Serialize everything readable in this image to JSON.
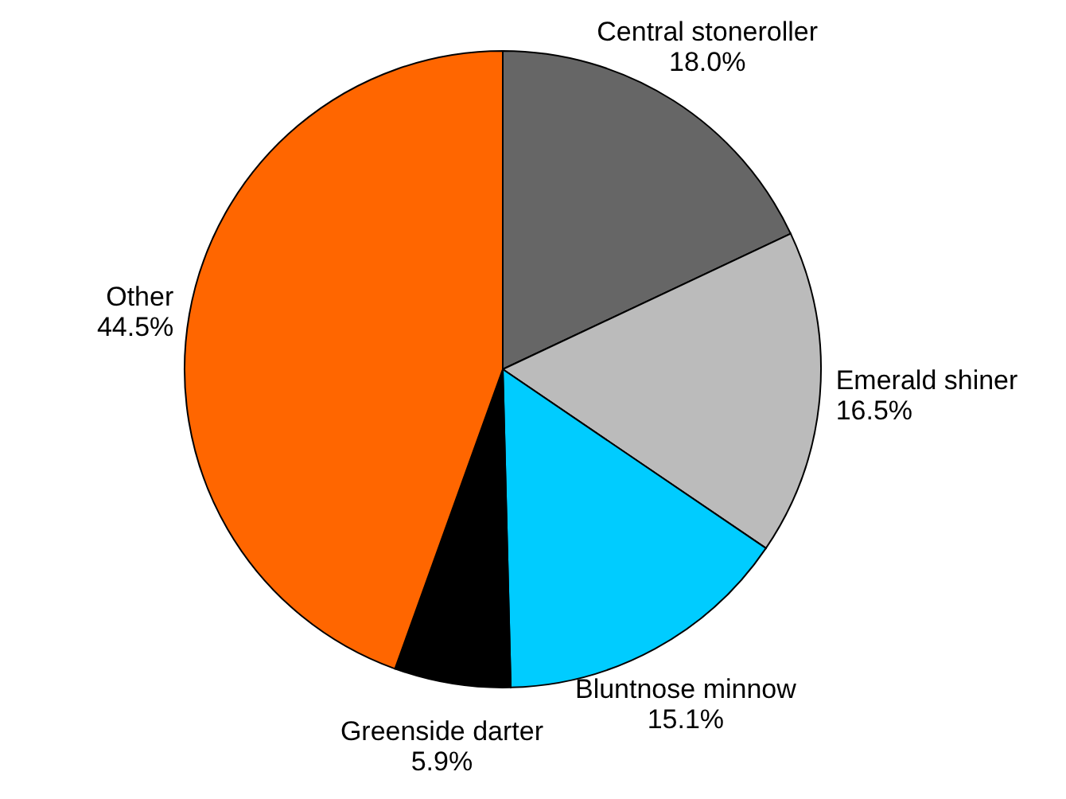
{
  "chart_data": {
    "type": "pie",
    "categories": [
      "Central stoneroller",
      "Emerald shiner",
      "Bluntnose minnow",
      "Greenside darter",
      "Other"
    ],
    "values": [
      18.0,
      16.5,
      15.1,
      5.9,
      44.5
    ],
    "colors": [
      "#666666",
      "#bbbbbb",
      "#00ccff",
      "#000000",
      "#ff6600"
    ],
    "value_labels": [
      "18.0%",
      "16.5%",
      "15.1%",
      "5.9%",
      "44.5%"
    ]
  }
}
